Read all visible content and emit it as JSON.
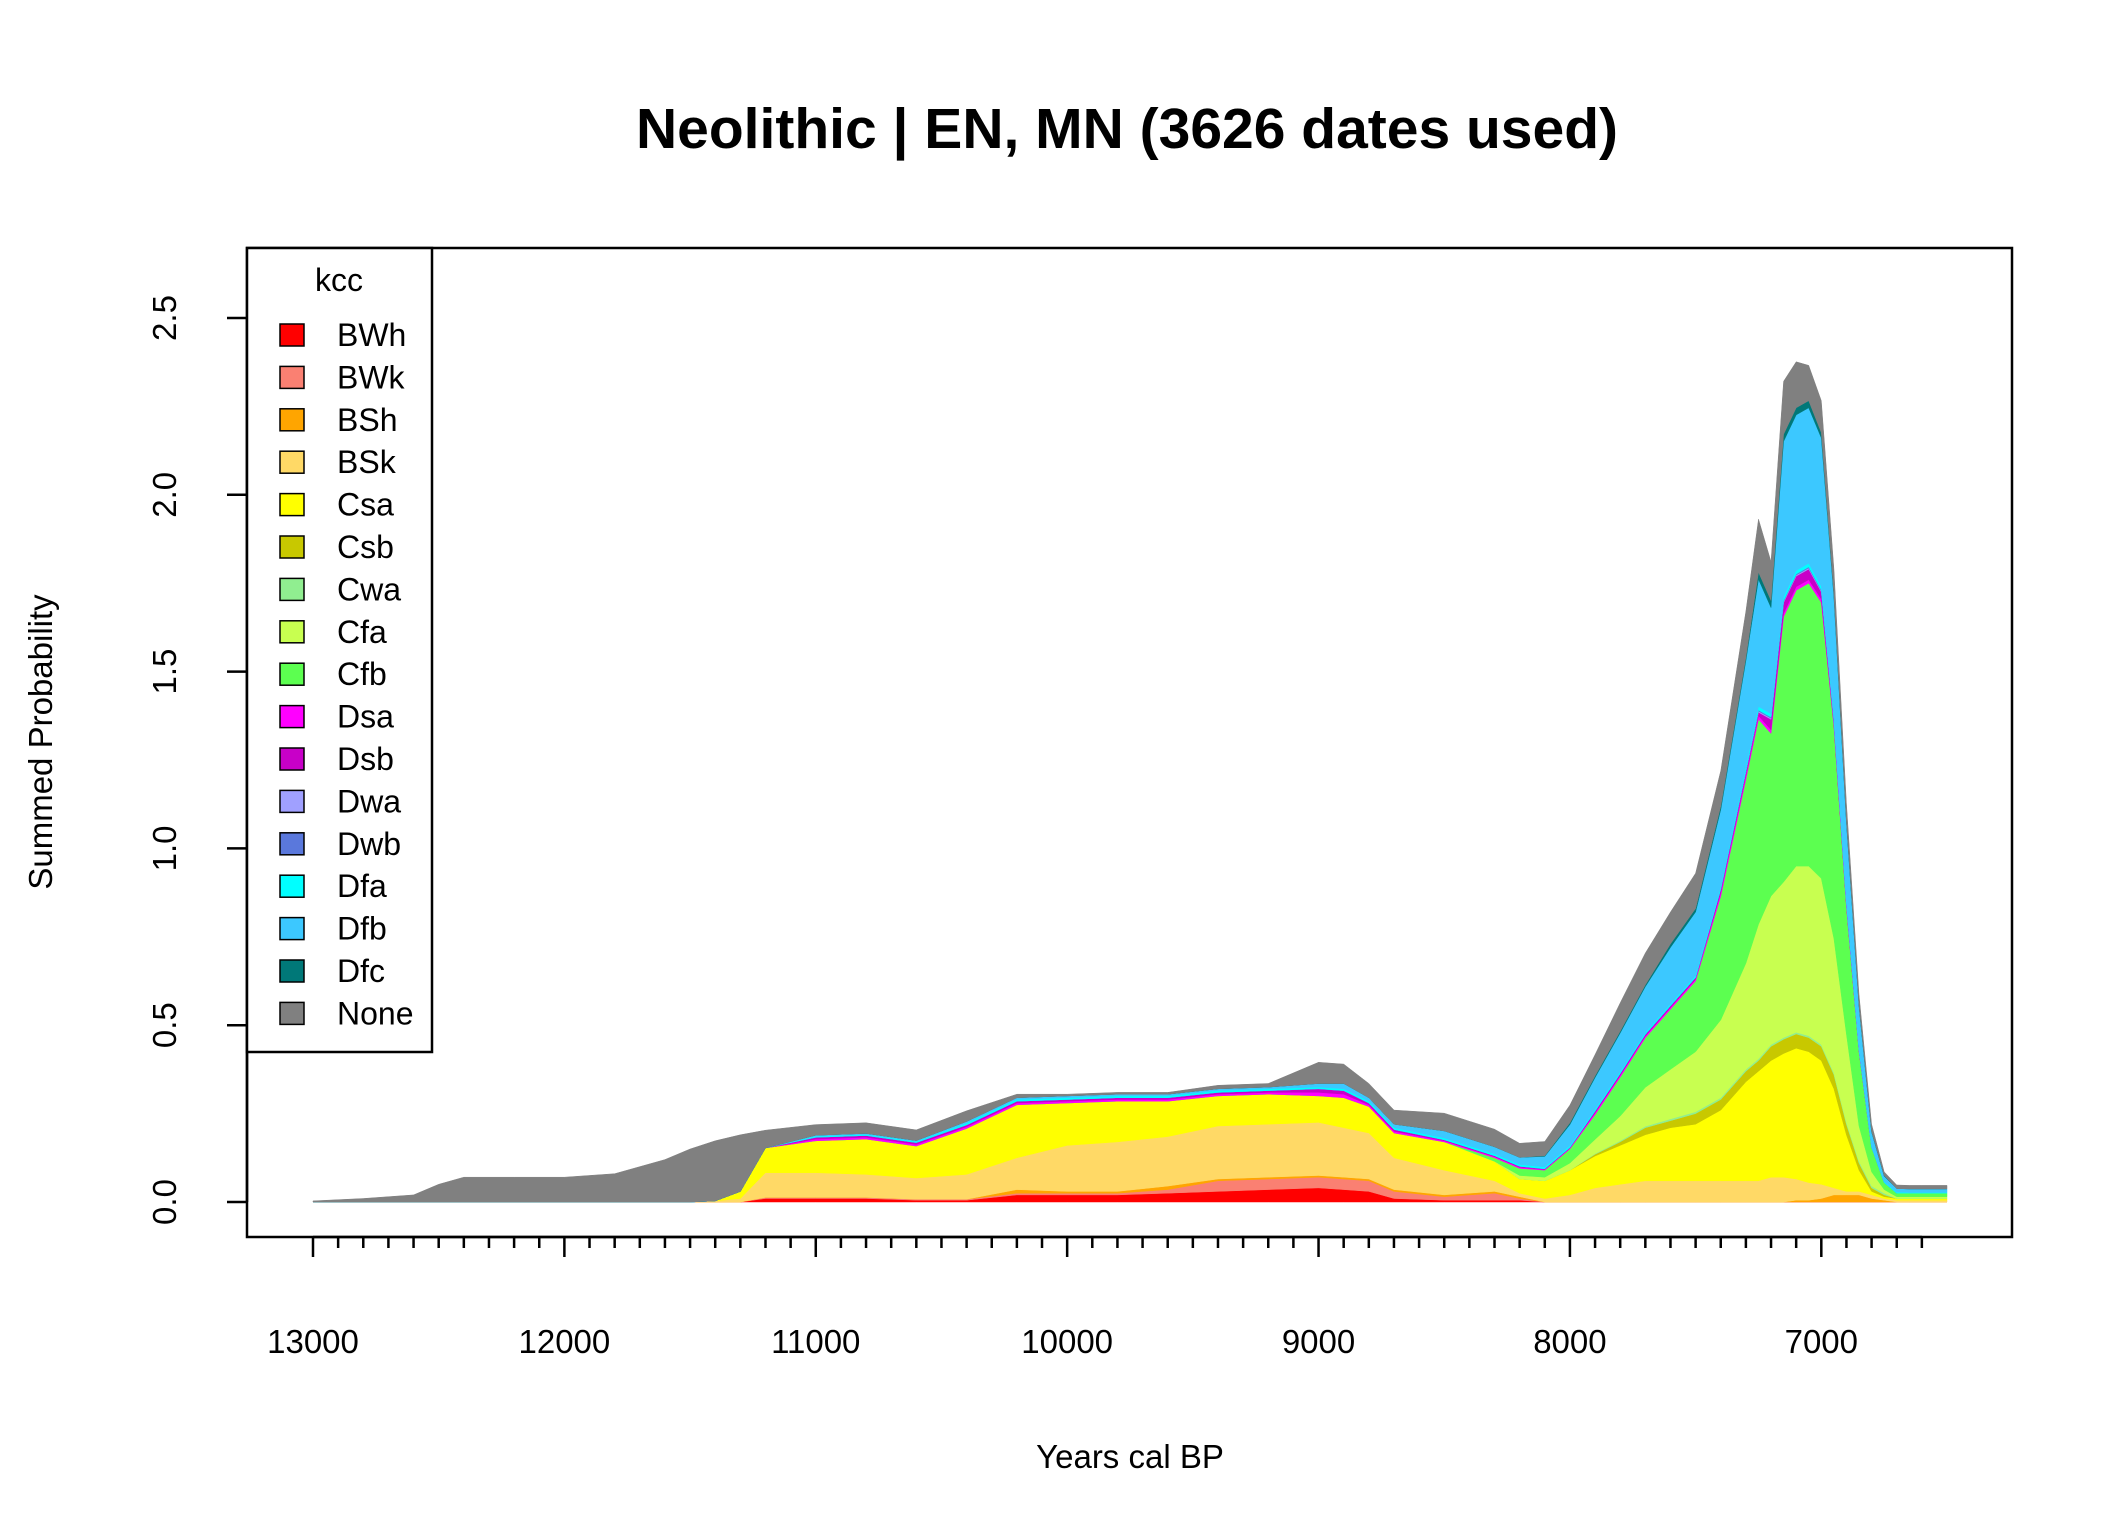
{
  "chart_data": {
    "type": "area",
    "stacked": true,
    "title": "Neolithic | EN, MN (3626 dates used)",
    "xlabel": "Years cal BP",
    "ylabel": "Summed Probability",
    "xlim": [
      13000,
      6500
    ],
    "x_reversed": true,
    "ylim": [
      0,
      2.6
    ],
    "x_major_ticks": [
      13000,
      12000,
      11000,
      10000,
      9000,
      8000,
      7000
    ],
    "x_minor_step": 100,
    "y_ticks": [
      "0.0",
      "0.5",
      "1.0",
      "1.5",
      "2.0",
      "2.5"
    ],
    "y_tick_values": [
      0,
      0.5,
      1.0,
      1.5,
      2.0,
      2.5
    ],
    "grid": false,
    "legend": {
      "title": "kcc",
      "position": "top-left"
    },
    "x": [
      13000,
      12800,
      12600,
      12500,
      12400,
      12200,
      12000,
      11800,
      11600,
      11500,
      11400,
      11300,
      11200,
      11000,
      10800,
      10600,
      10400,
      10200,
      10000,
      9800,
      9600,
      9400,
      9200,
      9000,
      8900,
      8800,
      8700,
      8500,
      8300,
      8200,
      8100,
      8000,
      7900,
      7800,
      7700,
      7600,
      7500,
      7400,
      7300,
      7250,
      7200,
      7150,
      7100,
      7050,
      7000,
      6950,
      6900,
      6850,
      6800,
      6750,
      6700,
      6650,
      6600,
      6500
    ],
    "series": [
      {
        "name": "BWh",
        "color": "#FF0000",
        "values": [
          0,
          0,
          0,
          0,
          0,
          0,
          0,
          0,
          0,
          0,
          0,
          0,
          0.01,
          0.01,
          0.01,
          0.005,
          0.005,
          0.02,
          0.02,
          0.02,
          0.025,
          0.03,
          0.035,
          0.04,
          0.035,
          0.03,
          0.01,
          0.005,
          0.005,
          0.005,
          0,
          0,
          0,
          0,
          0,
          0,
          0,
          0,
          0,
          0,
          0,
          0,
          0,
          0,
          0,
          0,
          0,
          0,
          0,
          0,
          0,
          0,
          0,
          0
        ]
      },
      {
        "name": "BWk",
        "color": "#FA8072",
        "values": [
          0,
          0,
          0,
          0,
          0,
          0,
          0,
          0,
          0,
          0,
          0,
          0,
          0.003,
          0.003,
          0.003,
          0.003,
          0.003,
          0.005,
          0.005,
          0.005,
          0.01,
          0.03,
          0.03,
          0.03,
          0.03,
          0.03,
          0.02,
          0.01,
          0.02,
          0.005,
          0,
          0,
          0,
          0,
          0,
          0,
          0,
          0,
          0,
          0,
          0,
          0,
          0,
          0,
          0,
          0,
          0,
          0,
          0,
          0,
          0,
          0,
          0,
          0
        ]
      },
      {
        "name": "BSh",
        "color": "#FFA500",
        "values": [
          0,
          0,
          0,
          0,
          0,
          0,
          0,
          0,
          0,
          0,
          0,
          0,
          0,
          0,
          0,
          0,
          0,
          0.01,
          0.005,
          0.005,
          0.01,
          0.005,
          0.005,
          0.005,
          0.005,
          0.005,
          0.005,
          0.005,
          0.005,
          0.005,
          0,
          0,
          0,
          0,
          0,
          0,
          0,
          0,
          0,
          0,
          0,
          0,
          0.005,
          0.005,
          0.01,
          0.02,
          0.02,
          0.02,
          0.01,
          0.005,
          0,
          0,
          0,
          0
        ]
      },
      {
        "name": "BSk",
        "color": "#FFD966",
        "values": [
          0,
          0,
          0,
          0,
          0,
          0,
          0,
          0,
          0,
          0,
          0.003,
          0.01,
          0.07,
          0.07,
          0.065,
          0.06,
          0.07,
          0.09,
          0.13,
          0.14,
          0.14,
          0.15,
          0.15,
          0.15,
          0.14,
          0.13,
          0.09,
          0.07,
          0.03,
          0.01,
          0.01,
          0.02,
          0.04,
          0.05,
          0.06,
          0.06,
          0.06,
          0.06,
          0.06,
          0.06,
          0.07,
          0.07,
          0.06,
          0.05,
          0.04,
          0.02,
          0.01,
          0.01,
          0.01,
          0.005,
          0.005,
          0.005,
          0.005,
          0.005
        ]
      },
      {
        "name": "Csa",
        "color": "#FFFF00",
        "values": [
          0,
          0,
          0,
          0,
          0,
          0,
          0,
          0,
          0,
          0,
          0,
          0.02,
          0.07,
          0.09,
          0.1,
          0.09,
          0.13,
          0.15,
          0.12,
          0.115,
          0.1,
          0.085,
          0.085,
          0.075,
          0.085,
          0.075,
          0.07,
          0.08,
          0.055,
          0.04,
          0.05,
          0.07,
          0.09,
          0.11,
          0.13,
          0.15,
          0.16,
          0.2,
          0.28,
          0.31,
          0.33,
          0.35,
          0.37,
          0.37,
          0.35,
          0.28,
          0.16,
          0.06,
          0.01,
          0.005,
          0.005,
          0.005,
          0.005,
          0.005
        ]
      },
      {
        "name": "Csb",
        "color": "#C8C800",
        "values": [
          0,
          0,
          0,
          0,
          0,
          0,
          0,
          0,
          0,
          0,
          0,
          0,
          0,
          0,
          0,
          0,
          0,
          0,
          0,
          0,
          0,
          0,
          0,
          0,
          0,
          0,
          0,
          0,
          0,
          0,
          0,
          0,
          0.005,
          0.01,
          0.02,
          0.02,
          0.03,
          0.03,
          0.03,
          0.03,
          0.04,
          0.04,
          0.04,
          0.04,
          0.04,
          0.04,
          0.03,
          0.02,
          0.01,
          0.005,
          0,
          0,
          0,
          0
        ]
      },
      {
        "name": "Cwa",
        "color": "#90EE90",
        "values": [
          0,
          0,
          0,
          0,
          0,
          0,
          0,
          0,
          0,
          0,
          0,
          0,
          0,
          0,
          0,
          0,
          0,
          0,
          0,
          0,
          0,
          0,
          0,
          0,
          0,
          0,
          0,
          0,
          0,
          0,
          0,
          0,
          0.002,
          0.003,
          0.004,
          0.005,
          0.005,
          0.005,
          0.005,
          0.005,
          0.005,
          0.005,
          0.005,
          0.005,
          0.005,
          0.005,
          0.005,
          0.005,
          0.005,
          0.005,
          0,
          0,
          0,
          0
        ]
      },
      {
        "name": "Cfa",
        "color": "#C8FF50",
        "values": [
          0,
          0,
          0,
          0,
          0,
          0,
          0,
          0,
          0,
          0,
          0,
          0,
          0,
          0,
          0,
          0,
          0,
          0,
          0,
          0,
          0,
          0,
          0,
          0,
          0,
          0,
          0,
          0,
          0,
          0.01,
          0.01,
          0.02,
          0.04,
          0.07,
          0.11,
          0.14,
          0.17,
          0.22,
          0.3,
          0.38,
          0.42,
          0.44,
          0.47,
          0.48,
          0.47,
          0.38,
          0.25,
          0.1,
          0.04,
          0.01,
          0.005,
          0.005,
          0.005,
          0.005
        ]
      },
      {
        "name": "Cfb",
        "color": "#5CFF50",
        "values": [
          0,
          0,
          0,
          0,
          0,
          0,
          0,
          0,
          0,
          0,
          0,
          0,
          0,
          0,
          0,
          0,
          0,
          0,
          0,
          0,
          0,
          0,
          0,
          0,
          0,
          0,
          0,
          0,
          0.01,
          0.02,
          0.02,
          0.04,
          0.07,
          0.11,
          0.14,
          0.17,
          0.2,
          0.35,
          0.52,
          0.58,
          0.46,
          0.75,
          0.78,
          0.8,
          0.78,
          0.6,
          0.36,
          0.21,
          0.07,
          0.02,
          0.01,
          0.01,
          0.01,
          0.01
        ]
      },
      {
        "name": "Dsa",
        "color": "#FF00FF",
        "values": [
          0,
          0,
          0,
          0,
          0,
          0,
          0,
          0,
          0,
          0,
          0,
          0,
          0,
          0.005,
          0.005,
          0.005,
          0.005,
          0.005,
          0.005,
          0.005,
          0.005,
          0.005,
          0.005,
          0.01,
          0.01,
          0.005,
          0.005,
          0.003,
          0.003,
          0.003,
          0.002,
          0.002,
          0.005,
          0.005,
          0.005,
          0.005,
          0.005,
          0.01,
          0.01,
          0.01,
          0.01,
          0.01,
          0.01,
          0.01,
          0.01,
          0.005,
          0.005,
          0.003,
          0,
          0,
          0,
          0,
          0,
          0
        ]
      },
      {
        "name": "Dsb",
        "color": "#C800C8",
        "values": [
          0,
          0,
          0,
          0,
          0,
          0,
          0,
          0,
          0,
          0,
          0,
          0,
          0,
          0.005,
          0.005,
          0.005,
          0.005,
          0.005,
          0.005,
          0.005,
          0.005,
          0.005,
          0.005,
          0.01,
          0.01,
          0.005,
          0.005,
          0.003,
          0.003,
          0.003,
          0.002,
          0.002,
          0.005,
          0.005,
          0.005,
          0.005,
          0.005,
          0.01,
          0.01,
          0.01,
          0.03,
          0.03,
          0.03,
          0.03,
          0.02,
          0.01,
          0.005,
          0.003,
          0,
          0,
          0,
          0,
          0,
          0
        ]
      },
      {
        "name": "Dwa",
        "color": "#A0A0FF",
        "values": [
          0,
          0,
          0,
          0,
          0,
          0,
          0,
          0,
          0,
          0,
          0,
          0,
          0,
          0,
          0,
          0,
          0,
          0,
          0,
          0,
          0,
          0,
          0,
          0,
          0,
          0,
          0,
          0,
          0,
          0,
          0,
          0,
          0,
          0,
          0,
          0,
          0,
          0,
          0.003,
          0.003,
          0.003,
          0.003,
          0.003,
          0.003,
          0.003,
          0.003,
          0.002,
          0,
          0,
          0,
          0,
          0,
          0,
          0
        ]
      },
      {
        "name": "Dwb",
        "color": "#5A78DC",
        "values": [
          0,
          0,
          0,
          0,
          0,
          0,
          0,
          0,
          0,
          0,
          0,
          0,
          0,
          0,
          0,
          0,
          0,
          0,
          0,
          0,
          0,
          0,
          0,
          0,
          0,
          0,
          0,
          0,
          0,
          0,
          0,
          0,
          0,
          0,
          0,
          0,
          0,
          0,
          0.003,
          0.003,
          0.003,
          0.003,
          0.003,
          0.003,
          0.003,
          0.003,
          0.002,
          0,
          0,
          0,
          0,
          0,
          0,
          0
        ]
      },
      {
        "name": "Dfa",
        "color": "#00FFFF",
        "values": [
          0,
          0,
          0,
          0,
          0,
          0,
          0,
          0,
          0,
          0,
          0,
          0,
          0,
          0.003,
          0.003,
          0.003,
          0.005,
          0.005,
          0.005,
          0.005,
          0.005,
          0.005,
          0.005,
          0.005,
          0.005,
          0.005,
          0.005,
          0.005,
          0.005,
          0.005,
          0.005,
          0.005,
          0.005,
          0.005,
          0.005,
          0.005,
          0.005,
          0.005,
          0.01,
          0.01,
          0.01,
          0.01,
          0.01,
          0.01,
          0.01,
          0.005,
          0.005,
          0.003,
          0.003,
          0.003,
          0.003,
          0.002,
          0.002,
          0.002
        ]
      },
      {
        "name": "Dfb",
        "color": "#3CC8FF",
        "values": [
          0,
          0,
          0,
          0,
          0,
          0,
          0,
          0,
          0,
          0,
          0,
          0,
          0,
          0.003,
          0.003,
          0.003,
          0.005,
          0.005,
          0.005,
          0.005,
          0.005,
          0.005,
          0.005,
          0.01,
          0.015,
          0.01,
          0.01,
          0.02,
          0.02,
          0.02,
          0.03,
          0.06,
          0.09,
          0.11,
          0.13,
          0.16,
          0.18,
          0.22,
          0.3,
          0.36,
          0.3,
          0.44,
          0.44,
          0.44,
          0.42,
          0.34,
          0.22,
          0.12,
          0.04,
          0.015,
          0.01,
          0.01,
          0.01,
          0.01
        ]
      },
      {
        "name": "Dfc",
        "color": "#007878",
        "values": [
          0,
          0,
          0,
          0,
          0,
          0,
          0,
          0,
          0,
          0,
          0,
          0,
          0,
          0,
          0,
          0,
          0,
          0,
          0,
          0,
          0,
          0,
          0,
          0,
          0,
          0,
          0,
          0,
          0,
          0,
          0.002,
          0.005,
          0.005,
          0.005,
          0.005,
          0.01,
          0.01,
          0.01,
          0.01,
          0.02,
          0.02,
          0.02,
          0.02,
          0.02,
          0.015,
          0.01,
          0.005,
          0.003,
          0.002,
          0.002,
          0,
          0,
          0,
          0
        ]
      },
      {
        "name": "None",
        "color": "#808080",
        "values": [
          0.003,
          0.01,
          0.02,
          0.05,
          0.07,
          0.07,
          0.07,
          0.08,
          0.12,
          0.15,
          0.17,
          0.16,
          0.05,
          0.03,
          0.03,
          0.03,
          0.03,
          0.01,
          0.005,
          0.005,
          0.005,
          0.01,
          0.01,
          0.06,
          0.055,
          0.04,
          0.04,
          0.05,
          0.05,
          0.04,
          0.04,
          0.05,
          0.06,
          0.08,
          0.09,
          0.09,
          0.1,
          0.1,
          0.13,
          0.15,
          0.11,
          0.15,
          0.13,
          0.1,
          0.09,
          0.07,
          0.05,
          0.03,
          0.02,
          0.01,
          0.01,
          0.01,
          0.01,
          0.01
        ]
      }
    ]
  }
}
